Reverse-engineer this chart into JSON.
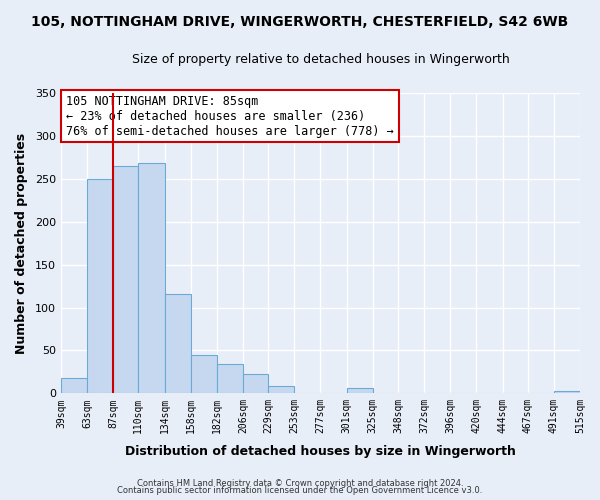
{
  "title": "105, NOTTINGHAM DRIVE, WINGERWORTH, CHESTERFIELD, S42 6WB",
  "subtitle": "Size of property relative to detached houses in Wingerworth",
  "xlabel": "Distribution of detached houses by size in Wingerworth",
  "ylabel": "Number of detached properties",
  "bar_edges": [
    39,
    63,
    87,
    110,
    134,
    158,
    182,
    206,
    229,
    253,
    277,
    301,
    325,
    348,
    372,
    396,
    420,
    444,
    467,
    491,
    515
  ],
  "bar_heights": [
    18,
    250,
    265,
    268,
    116,
    45,
    34,
    22,
    8,
    0,
    0,
    6,
    0,
    0,
    0,
    0,
    0,
    0,
    0,
    3
  ],
  "bar_color": "#c5d8f0",
  "bar_edgecolor": "#6aaad4",
  "property_line_x": 87,
  "property_line_color": "#cc0000",
  "ylim": [
    0,
    350
  ],
  "annotation_text": "105 NOTTINGHAM DRIVE: 85sqm\n← 23% of detached houses are smaller (236)\n76% of semi-detached houses are larger (778) →",
  "annotation_box_color": "#ffffff",
  "annotation_box_edgecolor": "#cc0000",
  "footer1": "Contains HM Land Registry data © Crown copyright and database right 2024.",
  "footer2": "Contains public sector information licensed under the Open Government Licence v3.0.",
  "tick_labels": [
    "39sqm",
    "63sqm",
    "87sqm",
    "110sqm",
    "134sqm",
    "158sqm",
    "182sqm",
    "206sqm",
    "229sqm",
    "253sqm",
    "277sqm",
    "301sqm",
    "325sqm",
    "348sqm",
    "372sqm",
    "396sqm",
    "420sqm",
    "444sqm",
    "467sqm",
    "491sqm",
    "515sqm"
  ],
  "background_color": "#e8eef8",
  "grid_color": "#ffffff",
  "yticks": [
    0,
    50,
    100,
    150,
    200,
    250,
    300,
    350
  ],
  "annotation_fontsize": 8.5,
  "title_fontsize": 10,
  "subtitle_fontsize": 9,
  "axis_label_fontsize": 9,
  "tick_fontsize": 7
}
